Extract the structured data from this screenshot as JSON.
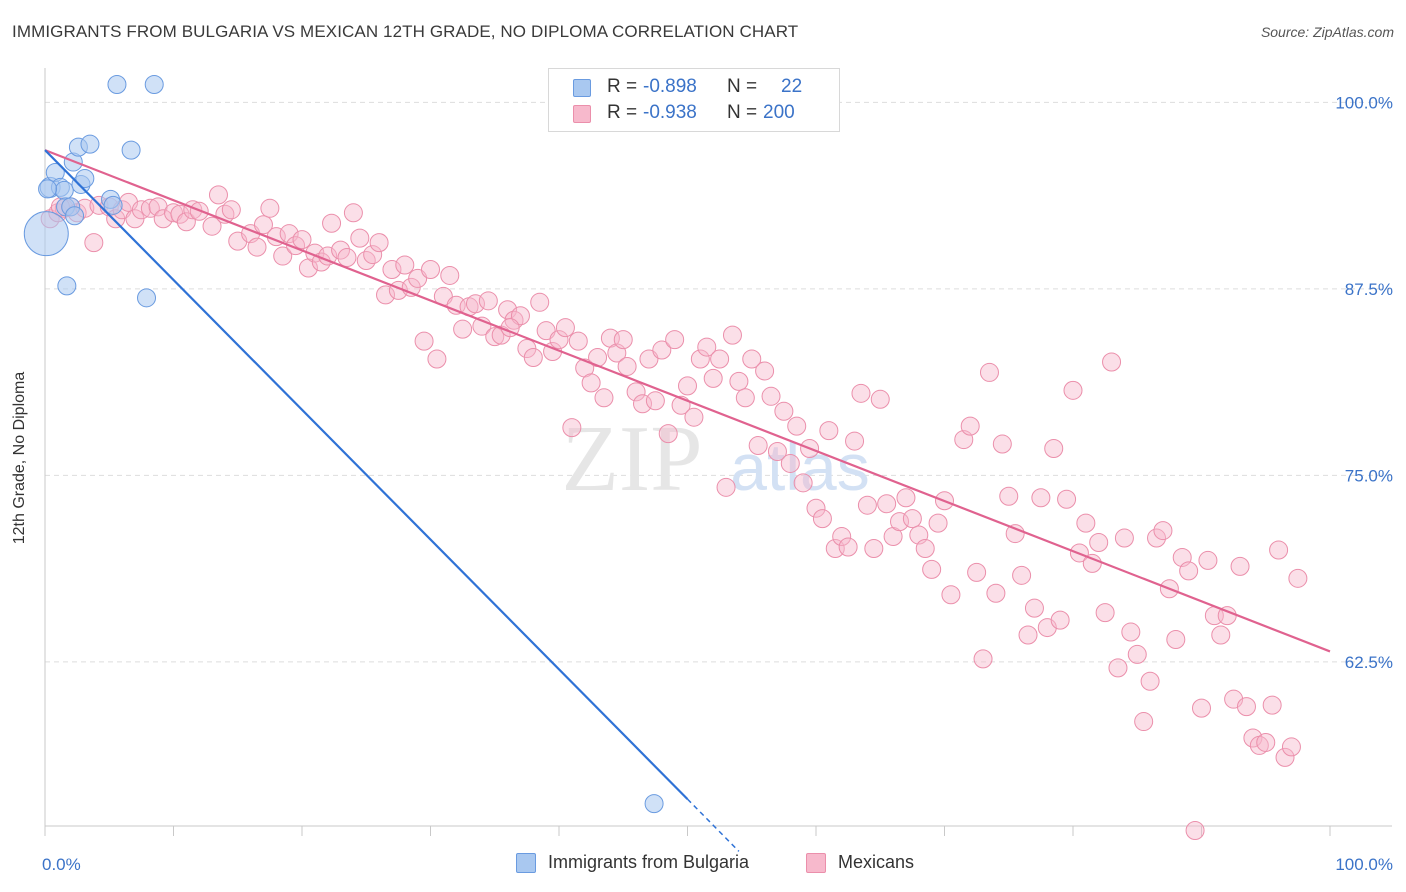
{
  "title": "IMMIGRANTS FROM BULGARIA VS MEXICAN 12TH GRADE, NO DIPLOMA CORRELATION CHART",
  "source": "Source: ZipAtlas.com",
  "watermark": {
    "zip": "ZIP",
    "atlas": "atlas"
  },
  "legend": {
    "rows": [
      {
        "r_label": "R =",
        "r_value": "-0.898",
        "n_label": "N =",
        "n_value": "22",
        "color": "#a9c8f0"
      },
      {
        "r_label": "R =",
        "r_value": "-0.938",
        "n_label": "N =",
        "n_value": "200",
        "color": "#f7b9cc"
      }
    ],
    "bottom": [
      {
        "label": "Immigrants from Bulgaria",
        "color": "#a9c8f0"
      },
      {
        "label": "Mexicans",
        "color": "#f7b9cc"
      }
    ]
  },
  "colors": {
    "blue_fill": "#a9c8f0",
    "blue_stroke": "#6a9be0",
    "blue_line": "#2f72d6",
    "pink_fill": "#f7b9cc",
    "pink_stroke": "#eb8fab",
    "pink_line": "#e0628f",
    "tick_label": "#3b73c8",
    "grid": "#dddddd"
  },
  "chart_data": {
    "type": "scatter",
    "title": "IMMIGRANTS FROM BULGARIA VS MEXICAN 12TH GRADE, NO DIPLOMA CORRELATION CHART",
    "xlabel": "",
    "ylabel": "12th Grade, No Diploma",
    "xlim": [
      0,
      100
    ],
    "ylim": [
      51.5,
      101.5
    ],
    "x_tick_labels": [
      "0.0%",
      "100.0%"
    ],
    "y_ticks": [
      62.5,
      75.0,
      87.5,
      100.0
    ],
    "y_tick_labels": [
      "62.5%",
      "75.0%",
      "87.5%",
      "100.0%"
    ],
    "grid": true,
    "legend_position": "top-center",
    "series": [
      {
        "name": "Immigrants from Bulgaria",
        "points": [
          [
            0.1,
            91.2
          ],
          [
            0.4,
            94.3
          ],
          [
            0.8,
            95.3
          ],
          [
            1.2,
            94.3
          ],
          [
            1.5,
            94.1
          ],
          [
            1.6,
            93.0
          ],
          [
            1.7,
            87.7
          ],
          [
            2.0,
            93.0
          ],
          [
            2.2,
            96.0
          ],
          [
            2.3,
            92.4
          ],
          [
            2.6,
            97.0
          ],
          [
            2.8,
            94.5
          ],
          [
            3.1,
            94.9
          ],
          [
            3.5,
            97.2
          ],
          [
            5.1,
            93.5
          ],
          [
            5.3,
            93.1
          ],
          [
            5.6,
            101.2
          ],
          [
            6.7,
            96.8
          ],
          [
            7.9,
            86.9
          ],
          [
            8.5,
            101.2
          ],
          [
            47.4,
            53.0
          ],
          [
            0.2,
            94.2
          ]
        ],
        "sizes": [
          22,
          10,
          9,
          9,
          9,
          9,
          9,
          9,
          9,
          9,
          9,
          9,
          9,
          9,
          9,
          9,
          9,
          9,
          9,
          9,
          9,
          9
        ],
        "trend": {
          "x0": 0,
          "y0": 96.8,
          "x1": 50.0,
          "y1": 53.3,
          "dashed_to_x": 54.0,
          "dashed_to_y": 49.8
        }
      },
      {
        "name": "Mexicans",
        "trend": {
          "x0": 0,
          "y0": 96.8,
          "x1": 100,
          "y1": 63.2
        },
        "points": [
          [
            0.4,
            92.2
          ],
          [
            1.0,
            92.6
          ],
          [
            1.5,
            92.9
          ],
          [
            2.0,
            93.0
          ],
          [
            2.5,
            92.6
          ],
          [
            3.1,
            92.9
          ],
          [
            3.8,
            90.6
          ],
          [
            4.2,
            93.1
          ],
          [
            5.0,
            93.0
          ],
          [
            5.5,
            92.2
          ],
          [
            6.0,
            92.8
          ],
          [
            6.5,
            93.3
          ],
          [
            7.0,
            92.2
          ],
          [
            7.5,
            92.8
          ],
          [
            8.2,
            92.9
          ],
          [
            8.8,
            93.0
          ],
          [
            9.2,
            92.2
          ],
          [
            10.0,
            92.6
          ],
          [
            10.5,
            92.5
          ],
          [
            11.0,
            92.0
          ],
          [
            11.5,
            92.8
          ],
          [
            12.0,
            92.7
          ],
          [
            13.0,
            91.7
          ],
          [
            13.5,
            93.8
          ],
          [
            14.0,
            92.5
          ],
          [
            14.5,
            92.8
          ],
          [
            15.0,
            90.7
          ],
          [
            16.0,
            91.2
          ],
          [
            16.5,
            90.3
          ],
          [
            17.0,
            91.8
          ],
          [
            17.5,
            92.9
          ],
          [
            18.0,
            91.0
          ],
          [
            18.5,
            89.7
          ],
          [
            19.0,
            91.2
          ],
          [
            19.5,
            90.4
          ],
          [
            20.0,
            90.8
          ],
          [
            20.5,
            88.9
          ],
          [
            21.0,
            89.9
          ],
          [
            21.5,
            89.3
          ],
          [
            22.0,
            89.7
          ],
          [
            22.3,
            91.9
          ],
          [
            23.0,
            90.1
          ],
          [
            23.5,
            89.6
          ],
          [
            24.0,
            92.6
          ],
          [
            24.5,
            90.9
          ],
          [
            25.0,
            89.4
          ],
          [
            25.5,
            89.8
          ],
          [
            26.0,
            90.6
          ],
          [
            26.5,
            87.1
          ],
          [
            27.0,
            88.8
          ],
          [
            27.5,
            87.4
          ],
          [
            28.0,
            89.1
          ],
          [
            28.5,
            87.6
          ],
          [
            29.0,
            88.2
          ],
          [
            29.5,
            84.0
          ],
          [
            30.0,
            88.8
          ],
          [
            30.5,
            82.8
          ],
          [
            31.0,
            87.0
          ],
          [
            31.5,
            88.4
          ],
          [
            32.0,
            86.4
          ],
          [
            32.5,
            84.8
          ],
          [
            33.0,
            86.3
          ],
          [
            33.5,
            86.5
          ],
          [
            34.0,
            85.0
          ],
          [
            34.5,
            86.7
          ],
          [
            35.0,
            84.3
          ],
          [
            35.5,
            84.4
          ],
          [
            36.0,
            86.1
          ],
          [
            36.5,
            85.4
          ],
          [
            37.0,
            85.7
          ],
          [
            37.5,
            83.5
          ],
          [
            38.0,
            82.9
          ],
          [
            38.5,
            86.6
          ],
          [
            39.0,
            84.7
          ],
          [
            39.5,
            83.3
          ],
          [
            40.0,
            84.1
          ],
          [
            40.5,
            84.9
          ],
          [
            41.0,
            78.2
          ],
          [
            41.5,
            84.0
          ],
          [
            42.0,
            82.2
          ],
          [
            42.5,
            81.2
          ],
          [
            43.0,
            82.9
          ],
          [
            43.5,
            80.2
          ],
          [
            44.0,
            84.2
          ],
          [
            44.5,
            83.2
          ],
          [
            45.0,
            84.1
          ],
          [
            45.3,
            82.3
          ],
          [
            46.0,
            80.6
          ],
          [
            46.5,
            79.8
          ],
          [
            47.0,
            82.8
          ],
          [
            47.5,
            80.0
          ],
          [
            48.0,
            83.4
          ],
          [
            48.5,
            77.8
          ],
          [
            49.0,
            84.1
          ],
          [
            49.5,
            79.7
          ],
          [
            50.0,
            81.0
          ],
          [
            50.5,
            78.9
          ],
          [
            51.0,
            82.8
          ],
          [
            51.5,
            83.6
          ],
          [
            52.0,
            81.5
          ],
          [
            52.5,
            82.8
          ],
          [
            53.0,
            74.2
          ],
          [
            53.5,
            84.4
          ],
          [
            54.0,
            81.3
          ],
          [
            54.5,
            80.2
          ],
          [
            55.0,
            82.8
          ],
          [
            55.5,
            77.0
          ],
          [
            56.0,
            82.0
          ],
          [
            56.5,
            80.3
          ],
          [
            57.0,
            76.6
          ],
          [
            57.5,
            79.3
          ],
          [
            58.0,
            75.8
          ],
          [
            58.5,
            78.3
          ],
          [
            59.0,
            74.5
          ],
          [
            59.5,
            76.8
          ],
          [
            60.0,
            72.8
          ],
          [
            60.5,
            72.1
          ],
          [
            61.0,
            78.0
          ],
          [
            61.5,
            70.1
          ],
          [
            62.0,
            70.9
          ],
          [
            62.5,
            70.2
          ],
          [
            63.0,
            77.3
          ],
          [
            63.5,
            80.5
          ],
          [
            64.0,
            73.0
          ],
          [
            64.5,
            70.1
          ],
          [
            65.0,
            80.1
          ],
          [
            65.5,
            73.1
          ],
          [
            66.0,
            70.9
          ],
          [
            66.5,
            71.9
          ],
          [
            67.0,
            73.5
          ],
          [
            67.5,
            72.1
          ],
          [
            68.0,
            71.0
          ],
          [
            68.5,
            70.1
          ],
          [
            69.0,
            68.7
          ],
          [
            69.5,
            71.8
          ],
          [
            70.0,
            73.3
          ],
          [
            70.5,
            67.0
          ],
          [
            71.5,
            77.4
          ],
          [
            72.0,
            78.3
          ],
          [
            72.5,
            68.5
          ],
          [
            73.0,
            62.7
          ],
          [
            73.5,
            81.9
          ],
          [
            74.0,
            67.1
          ],
          [
            74.5,
            77.1
          ],
          [
            75.0,
            73.6
          ],
          [
            75.5,
            71.1
          ],
          [
            76.0,
            68.3
          ],
          [
            76.5,
            64.3
          ],
          [
            77.0,
            66.1
          ],
          [
            77.5,
            73.5
          ],
          [
            78.0,
            64.8
          ],
          [
            78.5,
            76.8
          ],
          [
            79.0,
            65.3
          ],
          [
            79.5,
            73.4
          ],
          [
            80.0,
            80.7
          ],
          [
            80.5,
            69.8
          ],
          [
            81.0,
            71.8
          ],
          [
            81.5,
            69.1
          ],
          [
            82.0,
            70.5
          ],
          [
            82.5,
            65.8
          ],
          [
            83.0,
            82.6
          ],
          [
            83.5,
            62.1
          ],
          [
            84.0,
            70.8
          ],
          [
            84.5,
            64.5
          ],
          [
            85.0,
            63.0
          ],
          [
            85.5,
            58.5
          ],
          [
            86.0,
            61.2
          ],
          [
            86.5,
            70.8
          ],
          [
            87.0,
            71.3
          ],
          [
            87.5,
            67.4
          ],
          [
            88.0,
            64.0
          ],
          [
            88.5,
            69.5
          ],
          [
            89.0,
            68.6
          ],
          [
            89.5,
            51.2
          ],
          [
            90.0,
            59.4
          ],
          [
            90.5,
            69.3
          ],
          [
            91.0,
            65.6
          ],
          [
            91.5,
            64.3
          ],
          [
            92.0,
            65.6
          ],
          [
            92.5,
            60.0
          ],
          [
            93.0,
            68.9
          ],
          [
            93.5,
            59.5
          ],
          [
            94.0,
            57.4
          ],
          [
            94.5,
            56.9
          ],
          [
            95.0,
            57.1
          ],
          [
            95.5,
            59.6
          ],
          [
            96.0,
            70.0
          ],
          [
            96.5,
            56.1
          ],
          [
            97.0,
            56.8
          ],
          [
            97.5,
            68.1
          ],
          [
            1.2,
            93.0
          ],
          [
            36.2,
            84.9
          ]
        ]
      }
    ]
  }
}
